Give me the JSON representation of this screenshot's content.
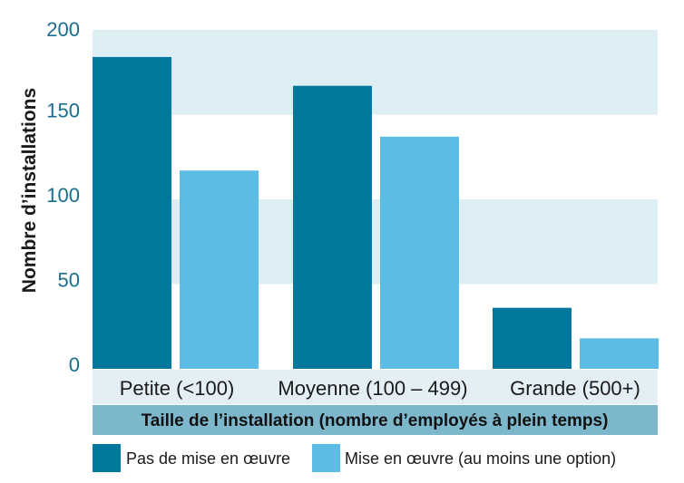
{
  "chart_data": {
    "type": "bar",
    "categories": [
      "Petite (<100)",
      "Moyenne (100 – 499)",
      "Grande (500+)"
    ],
    "series": [
      {
        "name": "Pas de mise en œuvre",
        "values": [
          184,
          167,
          36
        ],
        "color": "#00789e"
      },
      {
        "name": "Mise en œuvre (au moins une option)",
        "values": [
          117,
          137,
          18
        ],
        "color": "#5bbde6"
      }
    ],
    "ylabel": "Nombre d’installations",
    "xlabel": "Taille de l’installation (nombre d’employés à plein temps)",
    "ylim": [
      0,
      200
    ],
    "yticks": [
      0,
      50,
      100,
      150,
      200
    ],
    "legend_position": "bottom",
    "colors": {
      "band": "#deeef5",
      "category_row": "#e3eff5",
      "title_bar": "#7db7cc",
      "tick_text": "#1a6e8e"
    }
  }
}
